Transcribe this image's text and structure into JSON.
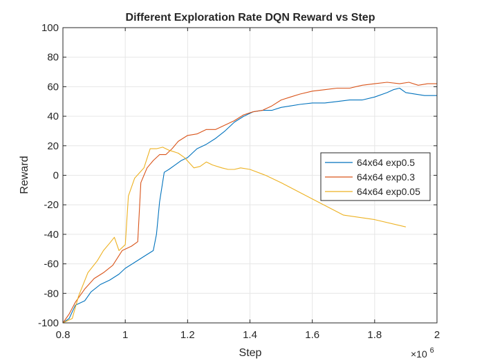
{
  "chart_data": {
    "type": "line",
    "title": "Different Exploration Rate DQN Reward vs Step",
    "xlabel": "Step",
    "ylabel": "Reward",
    "x_exponent_label": "×10",
    "x_exponent_power": "6",
    "xlim": [
      0.8,
      2.0
    ],
    "ylim": [
      -100,
      100
    ],
    "xticks": [
      0.8,
      1.0,
      1.2,
      1.4,
      1.6,
      1.8,
      2.0
    ],
    "xtick_labels": [
      "0.8",
      "1",
      "1.2",
      "1.4",
      "1.6",
      "1.8",
      "2"
    ],
    "yticks": [
      -100,
      -80,
      -60,
      -40,
      -20,
      0,
      20,
      40,
      60,
      80,
      100
    ],
    "grid": true,
    "legend_position": "right-middle",
    "series": [
      {
        "name": "64x64 exp0.5",
        "color": "#0072BD",
        "points": [
          [
            0.8,
            -100
          ],
          [
            0.82,
            -97
          ],
          [
            0.84,
            -88
          ],
          [
            0.87,
            -85
          ],
          [
            0.89,
            -79
          ],
          [
            0.92,
            -74
          ],
          [
            0.95,
            -71
          ],
          [
            0.98,
            -67
          ],
          [
            1.0,
            -63
          ],
          [
            1.03,
            -59
          ],
          [
            1.06,
            -55
          ],
          [
            1.09,
            -51
          ],
          [
            1.1,
            -40
          ],
          [
            1.11,
            -18
          ],
          [
            1.125,
            2
          ],
          [
            1.14,
            4
          ],
          [
            1.16,
            7
          ],
          [
            1.18,
            10
          ],
          [
            1.2,
            12
          ],
          [
            1.23,
            18
          ],
          [
            1.26,
            21
          ],
          [
            1.29,
            25
          ],
          [
            1.32,
            30
          ],
          [
            1.35,
            36
          ],
          [
            1.38,
            40
          ],
          [
            1.41,
            43
          ],
          [
            1.44,
            44
          ],
          [
            1.47,
            44
          ],
          [
            1.5,
            46
          ],
          [
            1.53,
            47
          ],
          [
            1.56,
            48
          ],
          [
            1.6,
            49
          ],
          [
            1.64,
            49
          ],
          [
            1.68,
            50
          ],
          [
            1.72,
            51
          ],
          [
            1.76,
            51
          ],
          [
            1.8,
            53
          ],
          [
            1.84,
            56
          ],
          [
            1.86,
            58
          ],
          [
            1.88,
            59
          ],
          [
            1.9,
            56
          ],
          [
            1.93,
            55
          ],
          [
            1.96,
            54
          ],
          [
            2.0,
            54
          ]
        ]
      },
      {
        "name": "64x64 exp0.3",
        "color": "#D95319",
        "points": [
          [
            0.8,
            -100
          ],
          [
            0.82,
            -94
          ],
          [
            0.84,
            -86
          ],
          [
            0.87,
            -77
          ],
          [
            0.9,
            -70
          ],
          [
            0.93,
            -66
          ],
          [
            0.96,
            -61
          ],
          [
            0.99,
            -51
          ],
          [
            1.02,
            -48
          ],
          [
            1.04,
            -45
          ],
          [
            1.05,
            -5
          ],
          [
            1.07,
            5
          ],
          [
            1.09,
            10
          ],
          [
            1.11,
            14
          ],
          [
            1.13,
            14
          ],
          [
            1.15,
            18
          ],
          [
            1.17,
            23
          ],
          [
            1.2,
            27
          ],
          [
            1.23,
            28
          ],
          [
            1.26,
            31
          ],
          [
            1.29,
            31
          ],
          [
            1.32,
            34
          ],
          [
            1.35,
            37
          ],
          [
            1.38,
            41
          ],
          [
            1.41,
            43
          ],
          [
            1.44,
            44
          ],
          [
            1.47,
            47
          ],
          [
            1.5,
            51
          ],
          [
            1.53,
            53
          ],
          [
            1.56,
            55
          ],
          [
            1.6,
            57
          ],
          [
            1.64,
            58
          ],
          [
            1.68,
            59
          ],
          [
            1.72,
            59
          ],
          [
            1.76,
            61
          ],
          [
            1.8,
            62
          ],
          [
            1.84,
            63
          ],
          [
            1.88,
            62
          ],
          [
            1.91,
            63
          ],
          [
            1.94,
            61
          ],
          [
            1.97,
            62
          ],
          [
            2.0,
            62
          ]
        ]
      },
      {
        "name": "64x64 exp0.05",
        "color": "#EDB120",
        "points": [
          [
            0.8,
            -100
          ],
          [
            0.83,
            -97
          ],
          [
            0.85,
            -82
          ],
          [
            0.88,
            -66
          ],
          [
            0.91,
            -58
          ],
          [
            0.93,
            -51
          ],
          [
            0.95,
            -46
          ],
          [
            0.965,
            -42
          ],
          [
            0.98,
            -51
          ],
          [
            1.0,
            -47
          ],
          [
            1.01,
            -14
          ],
          [
            1.03,
            -2
          ],
          [
            1.06,
            5
          ],
          [
            1.08,
            18
          ],
          [
            1.1,
            18
          ],
          [
            1.12,
            19
          ],
          [
            1.14,
            17
          ],
          [
            1.17,
            15
          ],
          [
            1.19,
            12
          ],
          [
            1.22,
            5
          ],
          [
            1.24,
            6
          ],
          [
            1.26,
            9
          ],
          [
            1.28,
            7
          ],
          [
            1.31,
            5
          ],
          [
            1.33,
            4
          ],
          [
            1.35,
            4
          ],
          [
            1.37,
            5
          ],
          [
            1.4,
            4
          ],
          [
            1.45,
            0
          ],
          [
            1.5,
            -5
          ],
          [
            1.6,
            -16
          ],
          [
            1.7,
            -27
          ],
          [
            1.8,
            -30
          ],
          [
            1.9,
            -35
          ]
        ]
      }
    ]
  }
}
